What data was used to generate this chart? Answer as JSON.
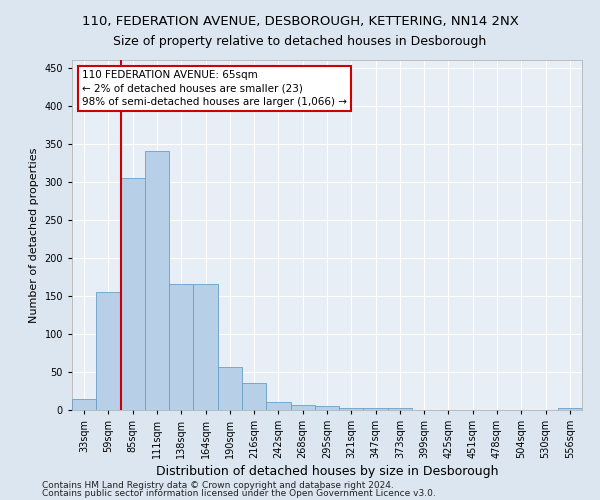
{
  "title1": "110, FEDERATION AVENUE, DESBOROUGH, KETTERING, NN14 2NX",
  "title2": "Size of property relative to detached houses in Desborough",
  "xlabel": "Distribution of detached houses by size in Desborough",
  "ylabel": "Number of detached properties",
  "bar_color": "#b8cfe8",
  "bar_edge_color": "#6a9fc8",
  "categories": [
    "33sqm",
    "59sqm",
    "85sqm",
    "111sqm",
    "138sqm",
    "164sqm",
    "190sqm",
    "216sqm",
    "242sqm",
    "268sqm",
    "295sqm",
    "321sqm",
    "347sqm",
    "373sqm",
    "399sqm",
    "425sqm",
    "451sqm",
    "478sqm",
    "504sqm",
    "530sqm",
    "556sqm"
  ],
  "values": [
    15,
    155,
    305,
    340,
    165,
    165,
    57,
    35,
    10,
    7,
    5,
    3,
    3,
    2,
    0,
    0,
    0,
    0,
    0,
    0,
    2
  ],
  "ylim": [
    0,
    460
  ],
  "yticks": [
    0,
    50,
    100,
    150,
    200,
    250,
    300,
    350,
    400,
    450
  ],
  "vline_x": 1.5,
  "vline_color": "#cc0000",
  "annotation_text": "110 FEDERATION AVENUE: 65sqm\n← 2% of detached houses are smaller (23)\n98% of semi-detached houses are larger (1,066) →",
  "annotation_box_color": "#ffffff",
  "annotation_box_edge_color": "#cc0000",
  "footnote1": "Contains HM Land Registry data © Crown copyright and database right 2024.",
  "footnote2": "Contains public sector information licensed under the Open Government Licence v3.0.",
  "background_color": "#dce6f0",
  "plot_background_color": "#e8eef5",
  "grid_color": "#ffffff",
  "title1_fontsize": 9.5,
  "title2_fontsize": 9,
  "xlabel_fontsize": 9,
  "ylabel_fontsize": 8,
  "tick_fontsize": 7,
  "annot_fontsize": 7.5
}
